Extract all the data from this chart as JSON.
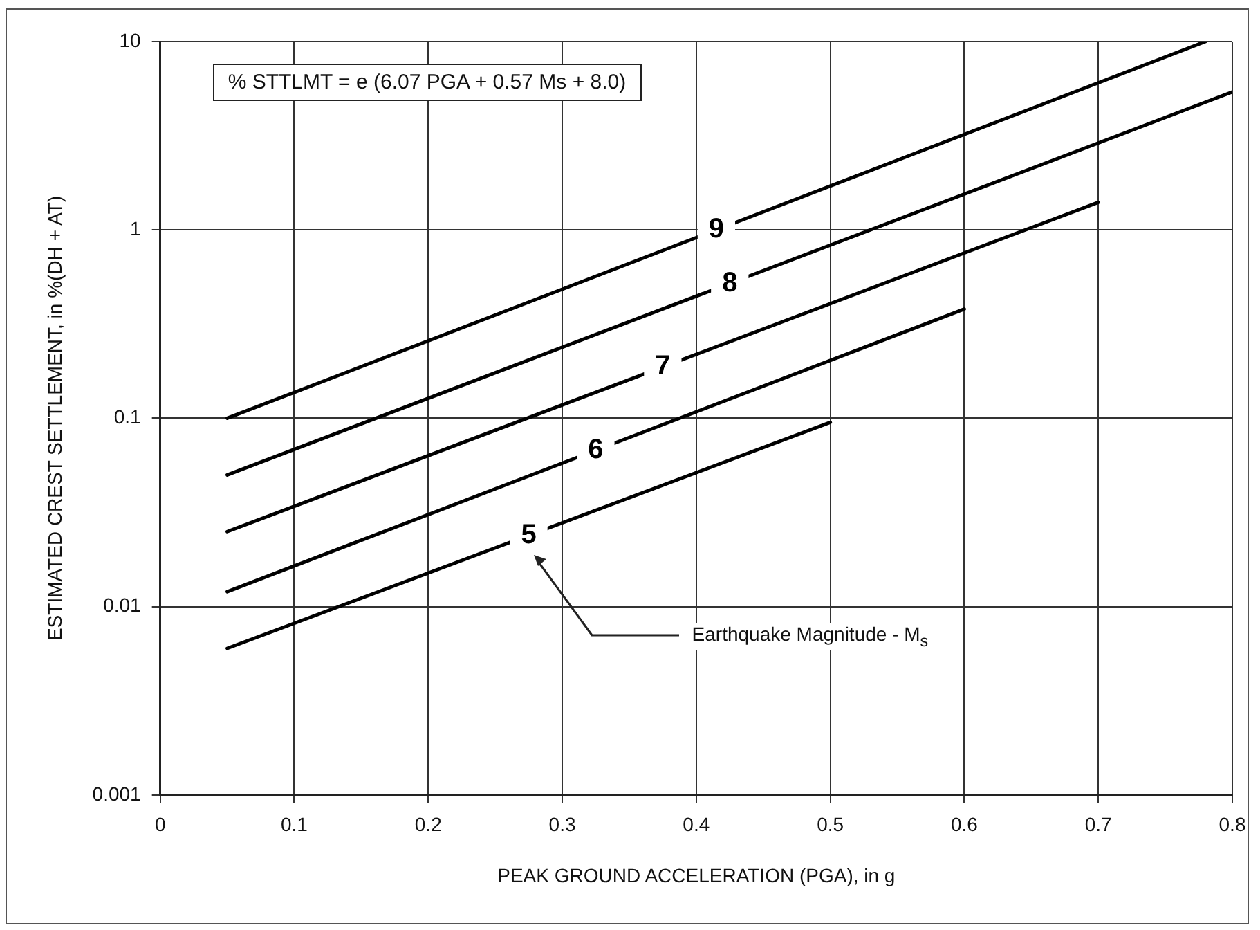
{
  "chart_data": {
    "type": "line",
    "xlabel": "PEAK GROUND ACCELERATION (PGA), in g",
    "ylabel": "ESTIMATED CREST SETTLEMENT, in %(DH + AT)",
    "annotations": [
      "% STTLMT = e (6.07 PGA + 0.57 Ms + 8.0)",
      "Earthquake Magnitude - M$_{s}$"
    ],
    "series": [
      {
        "name": "9",
        "color": "#000000",
        "x": [
          0.05,
          0.78
        ],
        "values": [
          0.1,
          10
        ]
      },
      {
        "name": "8",
        "color": "#000000",
        "x": [
          0.05,
          0.8
        ],
        "values": [
          0.05,
          5.4
        ]
      },
      {
        "name": "7",
        "color": "#000000",
        "x": [
          0.05,
          0.7
        ],
        "values": [
          0.025,
          1.4
        ]
      },
      {
        "name": "6",
        "color": "#000000",
        "x": [
          0.05,
          0.6
        ],
        "values": [
          0.012,
          0.38
        ]
      },
      {
        "name": "5",
        "color": "#000000",
        "x": [
          0.05,
          0.5
        ],
        "values": [
          0.006,
          0.095
        ]
      }
    ],
    "xlim": [
      0,
      0.8
    ],
    "xticks": [
      0,
      0.1,
      0.2,
      0.3,
      0.4,
      0.5,
      0.6,
      0.7,
      0.8
    ],
    "ylim": [
      0.001,
      10
    ],
    "yticks": [
      0.001,
      0.01,
      0.1,
      1,
      10
    ],
    "log": "y",
    "grid": true,
    "legend": false,
    "marker": "none",
    "line_style": "solid"
  }
}
